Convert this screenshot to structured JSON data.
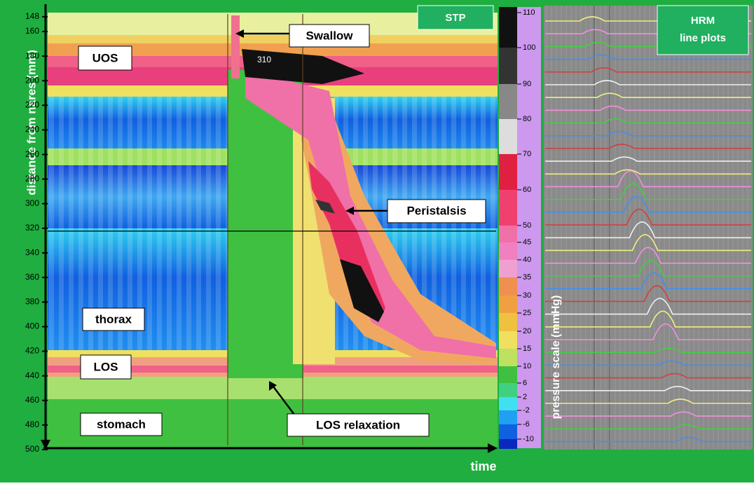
{
  "y_axis": {
    "label": "distance from nares (mm)",
    "ticks": [
      148,
      160,
      180,
      200,
      220,
      240,
      260,
      280,
      300,
      320,
      340,
      360,
      380,
      400,
      420,
      440,
      460,
      480,
      500
    ]
  },
  "x_axis": {
    "label": "time"
  },
  "panels": {
    "stp": "STP",
    "hrm": [
      "HRM",
      "line plots"
    ]
  },
  "annotations": {
    "swallow": "Swallow",
    "peristalsis": "Peristalsis",
    "los_relaxation": "LOS relaxation",
    "peak": "310"
  },
  "regions": {
    "uos": "UOS",
    "thorax": "thorax",
    "los": "LOS",
    "stomach": "stomach"
  },
  "pressure_scale": {
    "label": "pressure scale (mmHg)",
    "ticks": [
      110,
      100,
      90,
      80,
      70,
      60,
      50,
      45,
      40,
      35,
      30,
      25,
      20,
      15,
      10,
      6,
      2,
      -2,
      -6,
      -10
    ]
  }
}
